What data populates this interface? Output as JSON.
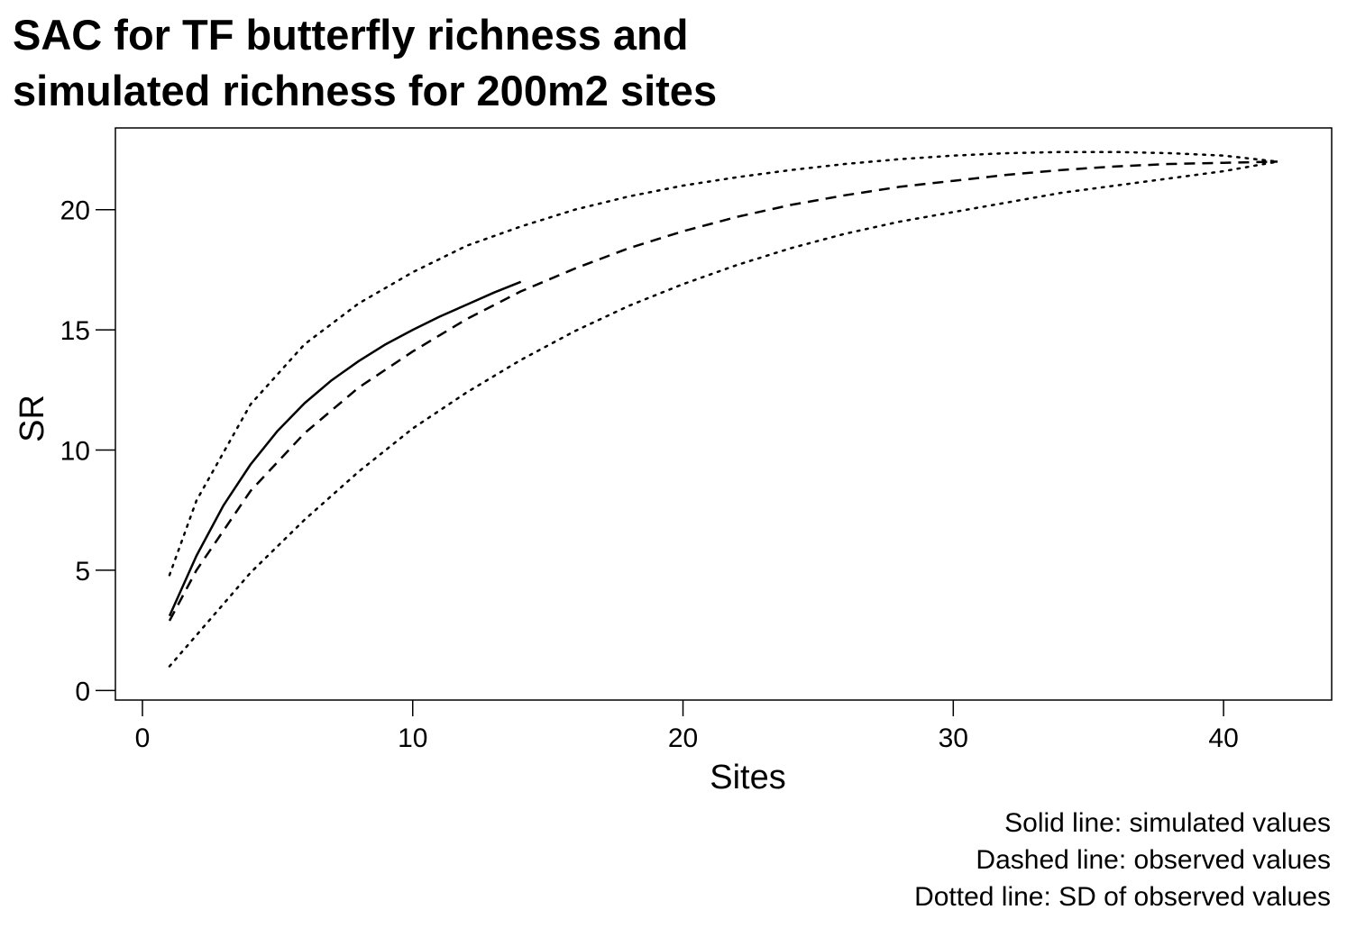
{
  "chart_data": {
    "type": "line",
    "title": [
      "SAC for TF butterfly richness and",
      "simulated richness for 200m2 sites"
    ],
    "xlabel": "Sites",
    "ylabel": "SR",
    "xlim": [
      -1,
      44
    ],
    "ylim": [
      -0.4,
      23.4
    ],
    "xticks": [
      0,
      10,
      20,
      30,
      40
    ],
    "yticks": [
      0,
      5,
      10,
      15,
      20
    ],
    "grid": false,
    "series": [
      {
        "style": "solid",
        "x": [
          1,
          2,
          3,
          4,
          5,
          6,
          7,
          8,
          9,
          10,
          11,
          12,
          13,
          14
        ],
        "values": [
          3.1,
          5.6,
          7.7,
          9.4,
          10.8,
          11.95,
          12.9,
          13.7,
          14.4,
          15.0,
          15.55,
          16.05,
          16.55,
          17.0
        ]
      },
      {
        "style": "dashed",
        "x": [
          1,
          2,
          4,
          6,
          8,
          10,
          12,
          14,
          16,
          18,
          20,
          22,
          24,
          26,
          28,
          30,
          32,
          34,
          36,
          38,
          40,
          42
        ],
        "values": [
          2.9,
          5.0,
          8.3,
          10.7,
          12.6,
          14.1,
          15.45,
          16.6,
          17.55,
          18.4,
          19.1,
          19.7,
          20.2,
          20.6,
          20.95,
          21.2,
          21.45,
          21.65,
          21.8,
          21.9,
          21.95,
          22.0
        ]
      },
      {
        "style": "dotted",
        "x": [
          1,
          2,
          4,
          6,
          8,
          10,
          12,
          14,
          16,
          18,
          20,
          22,
          24,
          26,
          28,
          30,
          32,
          34,
          36,
          38,
          40,
          42
        ],
        "values": [
          4.8,
          7.9,
          11.9,
          14.4,
          16.1,
          17.4,
          18.5,
          19.3,
          20.0,
          20.55,
          21.0,
          21.35,
          21.65,
          21.9,
          22.1,
          22.25,
          22.35,
          22.4,
          22.4,
          22.35,
          22.25,
          22.0
        ]
      },
      {
        "style": "dotted",
        "x": [
          1,
          2,
          4,
          6,
          8,
          10,
          12,
          14,
          16,
          18,
          20,
          22,
          24,
          26,
          28,
          30,
          32,
          34,
          36,
          38,
          40,
          42
        ],
        "values": [
          1.0,
          2.3,
          4.9,
          7.1,
          9.1,
          10.9,
          12.4,
          13.75,
          14.95,
          16.0,
          16.9,
          17.7,
          18.4,
          19.0,
          19.5,
          19.9,
          20.3,
          20.7,
          21.0,
          21.3,
          21.6,
          22.0
        ]
      }
    ]
  },
  "notes": [
    "Solid line: simulated values",
    "Dashed line: observed values",
    "Dotted line: SD of observed values"
  ]
}
